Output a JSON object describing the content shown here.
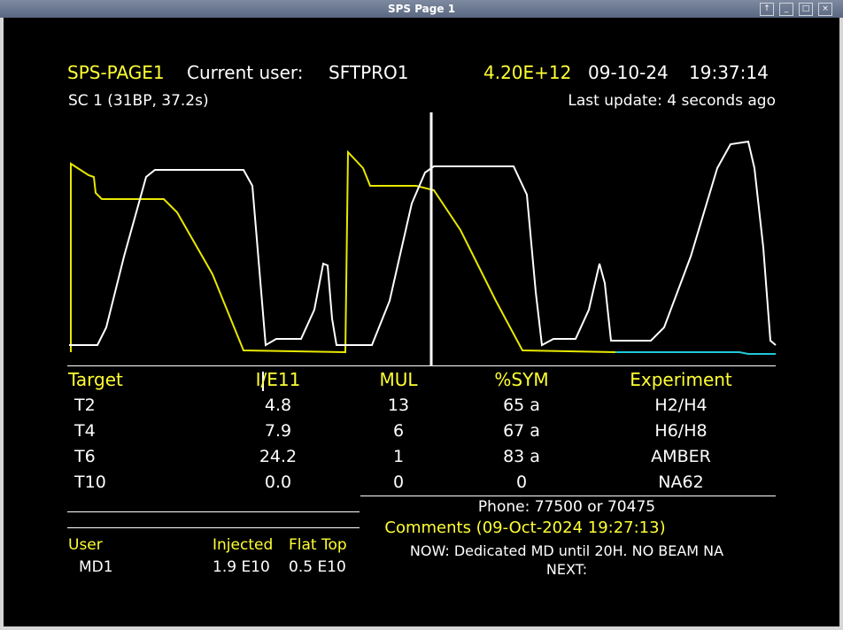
{
  "window": {
    "title": "SPS Page 1"
  },
  "header": {
    "page": "SPS-PAGE1",
    "user_label": "Current user:",
    "user": "SFTPRO1",
    "intensity": "4.20E+12",
    "date": "09-10-24",
    "time": "19:37:14",
    "cycle": "SC 1 (31BP, 37.2s)",
    "last_update": "Last update: 4 seconds ago"
  },
  "table": {
    "columns": [
      "Target",
      "I/E11",
      "MUL",
      "%SYM",
      "Experiment"
    ],
    "rows": [
      [
        "T2",
        "4.8",
        "13",
        "65 a",
        "H2/H4"
      ],
      [
        "T4",
        "7.9",
        "6",
        "67 a",
        "H6/H8"
      ],
      [
        "T6",
        "24.2",
        "1",
        "83 a",
        "AMBER"
      ],
      [
        "T10",
        "0.0",
        "0",
        "0",
        "NA62"
      ]
    ]
  },
  "users": {
    "columns": [
      "User",
      "Injected",
      "Flat Top"
    ],
    "rows": [
      [
        "MD1",
        "1.9 E10",
        "0.5 E10"
      ]
    ]
  },
  "info": {
    "phone": "Phone: 77500 or 70475",
    "comments_title": "Comments (09-Oct-2024 19:27:13)",
    "now": "NOW: Dedicated MD until 20H. NO BEAM NA",
    "next": "NEXT:"
  }
}
